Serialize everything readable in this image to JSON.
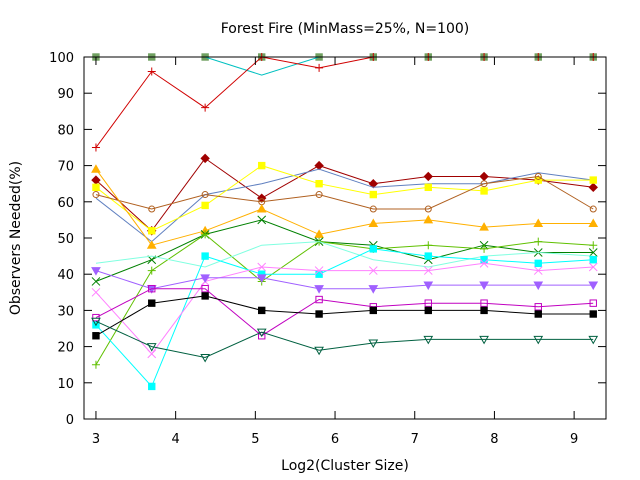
{
  "chart_data": {
    "type": "line",
    "title": "Forest Fire (MinMass=25%, N=100)",
    "xlabel": "Log2(Cluster Size)",
    "ylabel": "Observers Needed(%)",
    "xlim": [
      2.85,
      9.4
    ],
    "ylim": [
      0,
      100
    ],
    "xticks": [
      "3",
      "4",
      "5",
      "6",
      "7",
      "8",
      "9"
    ],
    "yticks": [
      "0",
      "10",
      "20",
      "30",
      "40",
      "50",
      "60",
      "70",
      "80",
      "90",
      "100"
    ],
    "grid": false,
    "legend": "none",
    "x": [
      3.0,
      3.7,
      4.37,
      5.08,
      5.8,
      6.48,
      7.17,
      7.87,
      8.55,
      9.24
    ],
    "series": [
      {
        "color": "#70a060",
        "marker": "square",
        "values": [
          100,
          100,
          100,
          100,
          100,
          100,
          100,
          100,
          100,
          100
        ]
      },
      {
        "color": "#00c0c0",
        "marker": "none",
        "values": [
          100,
          100,
          100,
          95,
          100,
          100,
          100,
          100,
          100,
          100
        ]
      },
      {
        "color": "#d00000",
        "marker": "plus",
        "values": [
          75,
          96,
          86,
          100,
          97,
          100,
          100,
          100,
          100,
          100
        ]
      },
      {
        "color": "#a00000",
        "marker": "diamond",
        "values": [
          66,
          52,
          72,
          61,
          70,
          65,
          67,
          67,
          66,
          64
        ]
      },
      {
        "color": "#6080c0",
        "marker": "none",
        "values": [
          61,
          49,
          62,
          65,
          69,
          64,
          65,
          65,
          68,
          66
        ]
      },
      {
        "color": "#ffff00",
        "marker": "square",
        "values": [
          64,
          52,
          59,
          70,
          65,
          62,
          64,
          63,
          66,
          66
        ]
      },
      {
        "color": "#b06020",
        "marker": "circle",
        "values": [
          62,
          58,
          62,
          60,
          62,
          58,
          58,
          65,
          67,
          58
        ]
      },
      {
        "color": "#ffb000",
        "marker": "triangle",
        "values": [
          69,
          48,
          52,
          58,
          51,
          54,
          55,
          53,
          54,
          54
        ]
      },
      {
        "color": "#008000",
        "marker": "x",
        "values": [
          38,
          44,
          51,
          55,
          49,
          48,
          44,
          48,
          46,
          46
        ]
      },
      {
        "color": "#60c000",
        "marker": "plus",
        "values": [
          15,
          41,
          51,
          38,
          49,
          47,
          48,
          47,
          49,
          48
        ]
      },
      {
        "color": "#80ffe0",
        "marker": "none",
        "values": [
          43,
          45,
          42,
          48,
          49,
          44,
          42,
          45,
          46,
          45
        ]
      },
      {
        "color": "#00ffff",
        "marker": "square",
        "values": [
          26,
          9,
          45,
          40,
          40,
          47,
          45,
          44,
          43,
          44
        ]
      },
      {
        "color": "#ff80ff",
        "marker": "x",
        "values": [
          35,
          18,
          38,
          42,
          41,
          41,
          41,
          43,
          41,
          42
        ]
      },
      {
        "color": "#a060ff",
        "marker": "triangle-down",
        "values": [
          41,
          36,
          39,
          39,
          36,
          36,
          37,
          37,
          37,
          37
        ]
      },
      {
        "color": "#c000c0",
        "marker": "square-open",
        "values": [
          28,
          36,
          36,
          23,
          33,
          31,
          32,
          32,
          31,
          32
        ]
      },
      {
        "color": "#000000",
        "marker": "square",
        "values": [
          23,
          32,
          34,
          30,
          29,
          30,
          30,
          30,
          29,
          29
        ]
      },
      {
        "color": "#006040",
        "marker": "triangle-down-open",
        "values": [
          27,
          20,
          17,
          24,
          19,
          21,
          22,
          22,
          22,
          22
        ]
      }
    ]
  }
}
